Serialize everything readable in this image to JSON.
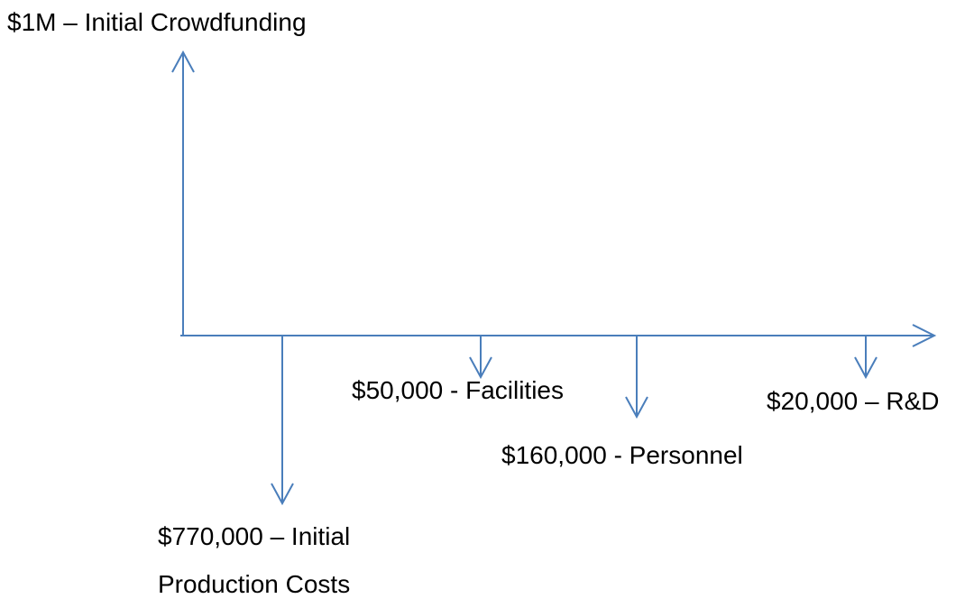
{
  "inflow": {
    "label": "$1M – Initial Crowdfunding"
  },
  "outflows": [
    {
      "label": "$770,000 – Initial Production Costs"
    },
    {
      "label": "$50,000 - Facilities"
    },
    {
      "label": "$160,000 - Personnel"
    },
    {
      "label": "$20,000 – R&D"
    }
  ]
}
